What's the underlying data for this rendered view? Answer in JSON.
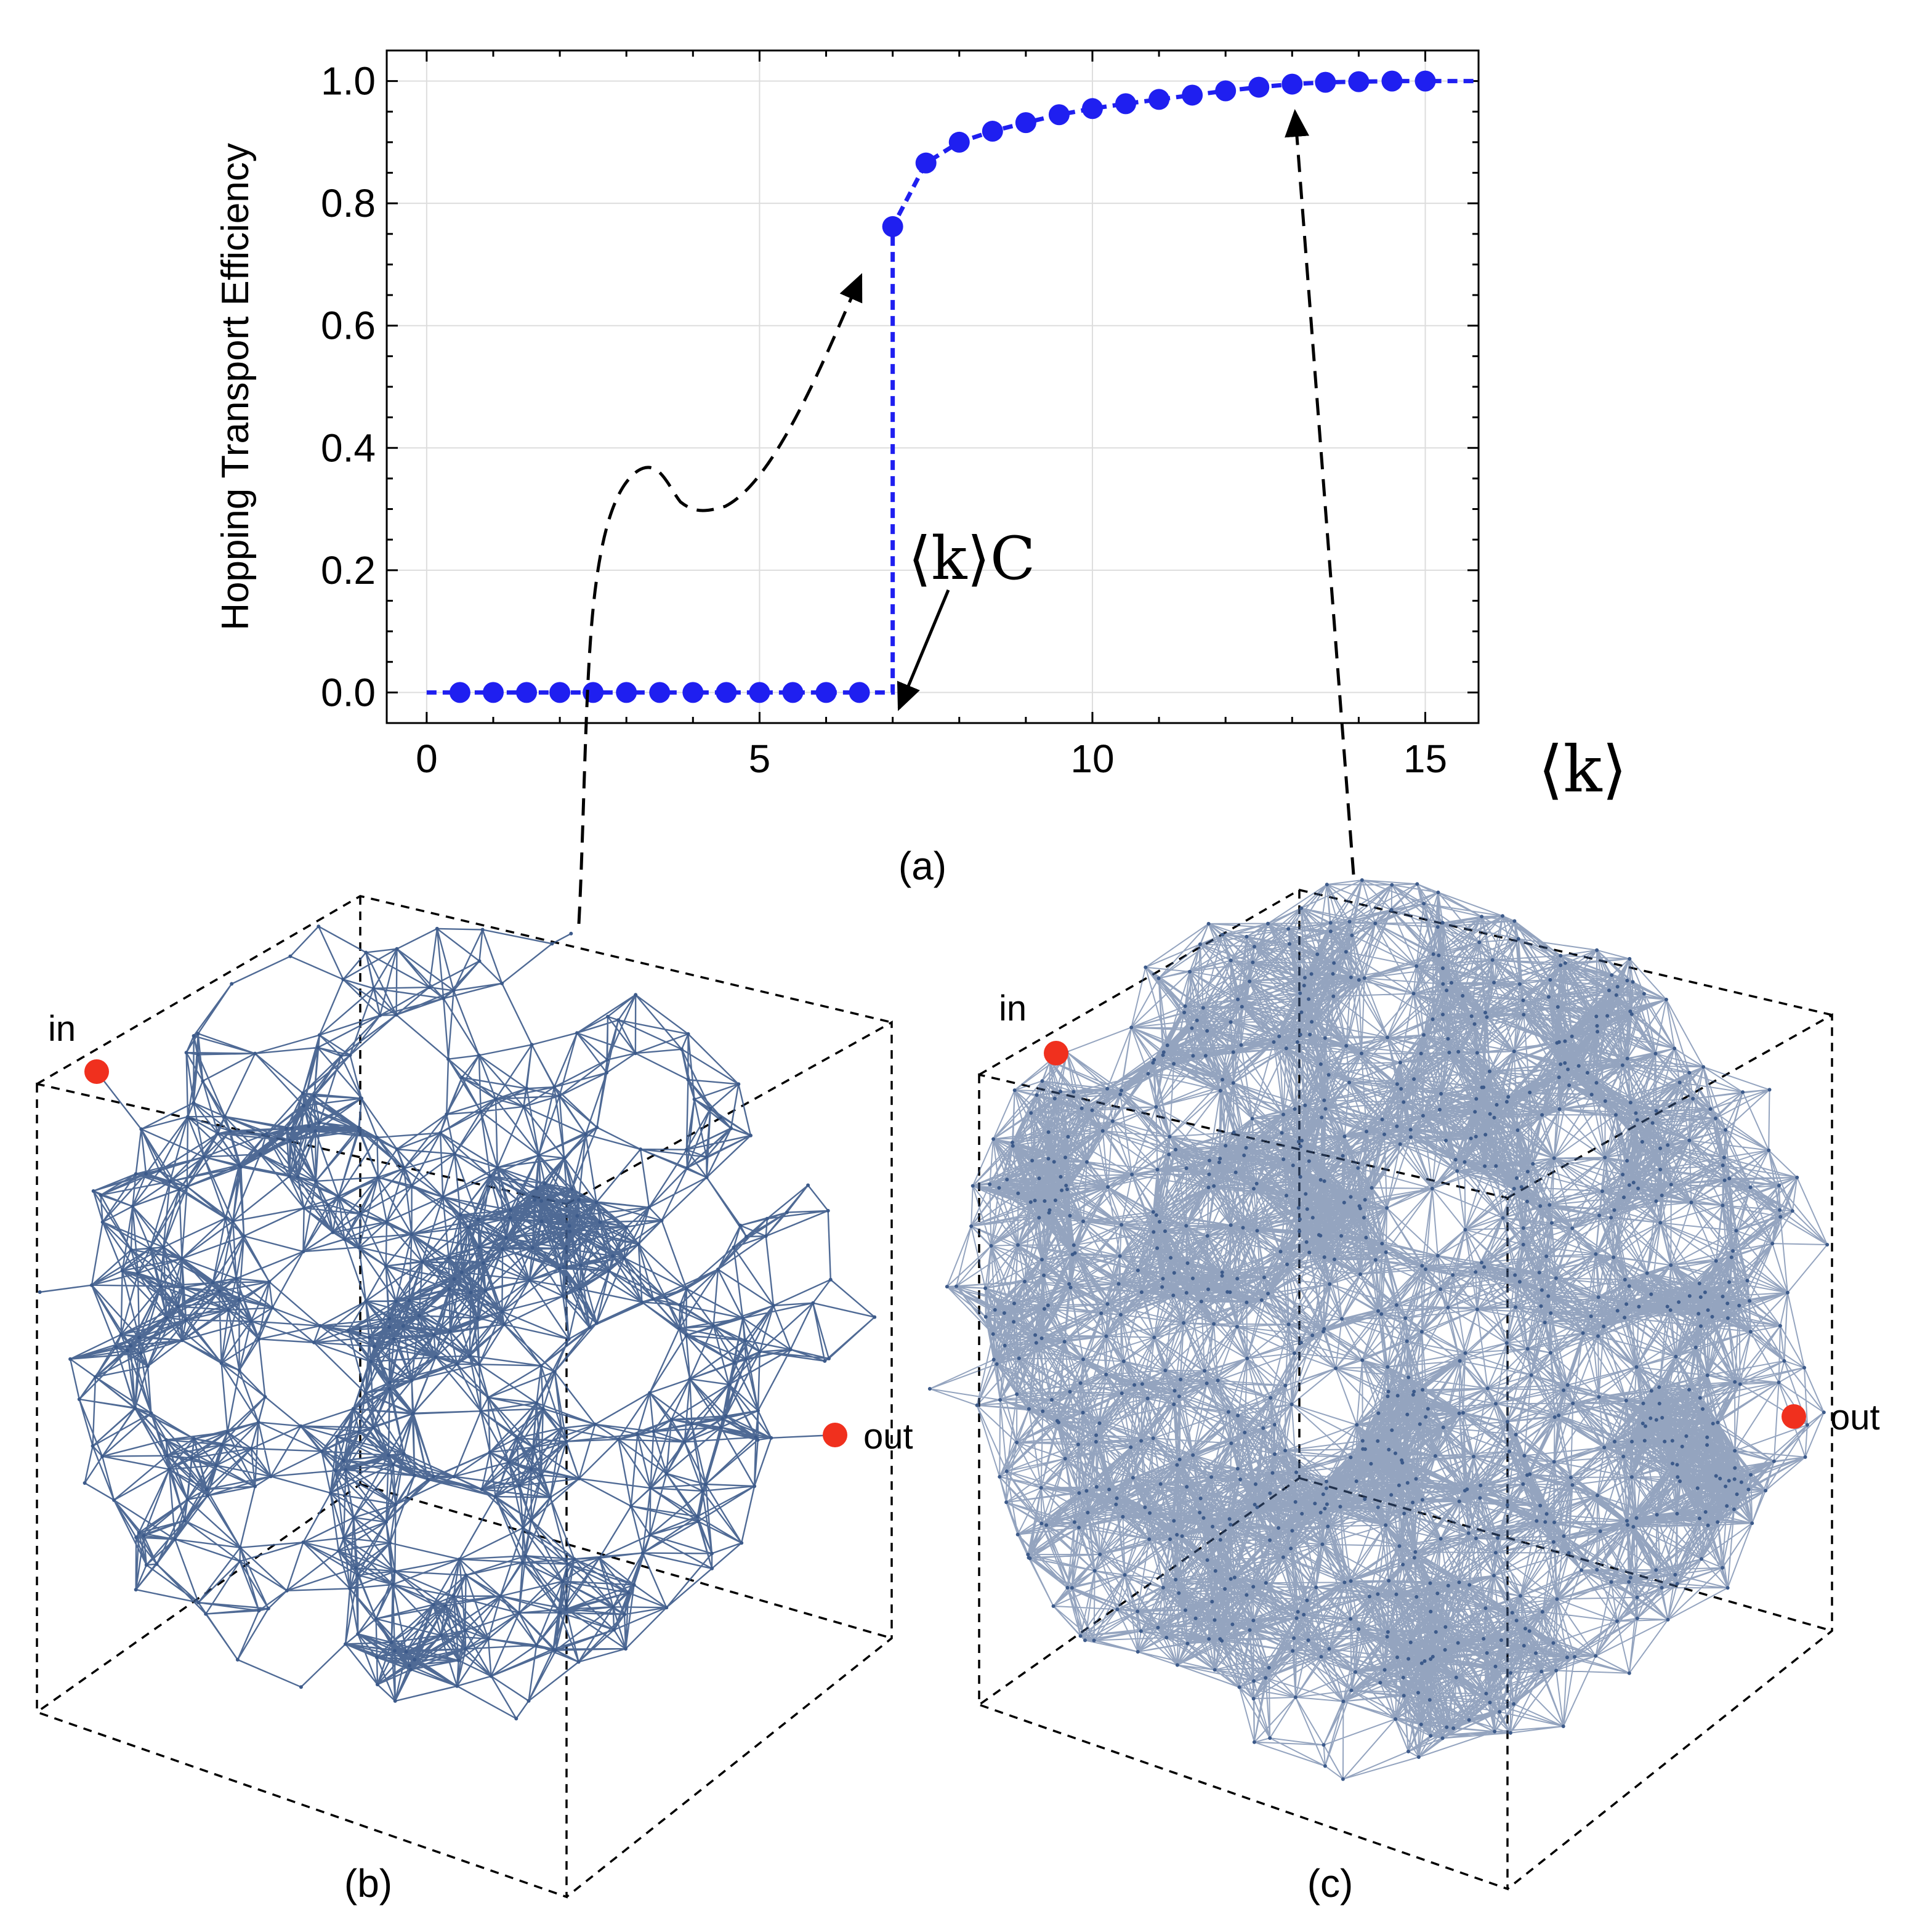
{
  "colors": {
    "series": "#1f1ff0",
    "network_edge": "#3c5a8a",
    "terminal_node": "#f0301e",
    "annotation": "#000000",
    "grid": "#dddddd"
  },
  "chart_data": {
    "type": "scatter",
    "panel_label": "(a)",
    "ylabel": "Hopping Transport Efficiency",
    "xlabel": "⟨k⟩",
    "xlim": [
      -0.6,
      15.8
    ],
    "ylim": [
      -0.05,
      1.05
    ],
    "xticks": [
      0,
      5,
      10,
      15
    ],
    "xtick_labels": [
      "0",
      "5",
      "10",
      "15"
    ],
    "yticks": [
      0.0,
      0.2,
      0.4,
      0.6,
      0.8,
      1.0
    ],
    "ytick_labels": [
      "0.0",
      "0.2",
      "0.4",
      "0.6",
      "0.8",
      "1.0"
    ],
    "grid": true,
    "critical_annotation": "⟨k⟩C",
    "critical_point": 7.0,
    "series": [
      {
        "name": "Hopping Transport Efficiency",
        "style": "markers with dashed guide line",
        "x": [
          0.5,
          1.0,
          1.5,
          2.0,
          2.5,
          3.0,
          3.5,
          4.0,
          4.5,
          5.0,
          5.5,
          6.0,
          6.5,
          7.0,
          7.5,
          8.0,
          8.5,
          9.0,
          9.5,
          10.0,
          10.5,
          11.0,
          11.5,
          12.0,
          12.5,
          13.0,
          13.5,
          14.0,
          14.5,
          15.0
        ],
        "y": [
          0.0,
          0.0,
          0.0,
          0.0,
          0.0,
          0.0,
          0.0,
          0.0,
          0.0,
          0.0,
          0.0,
          0.0,
          0.0,
          0.762,
          0.866,
          0.9,
          0.918,
          0.932,
          0.945,
          0.955,
          0.963,
          0.97,
          0.977,
          0.984,
          0.99,
          0.995,
          0.998,
          0.999,
          1.0,
          1.0
        ]
      }
    ]
  },
  "network_panels": [
    {
      "panel_label": "(b)",
      "in_label": "in",
      "out_label": "out",
      "density": "sparse",
      "points_to_x": 2.5
    },
    {
      "panel_label": "(c)",
      "in_label": "in",
      "out_label": "out",
      "density": "dense",
      "points_to_x": 13.0
    }
  ]
}
